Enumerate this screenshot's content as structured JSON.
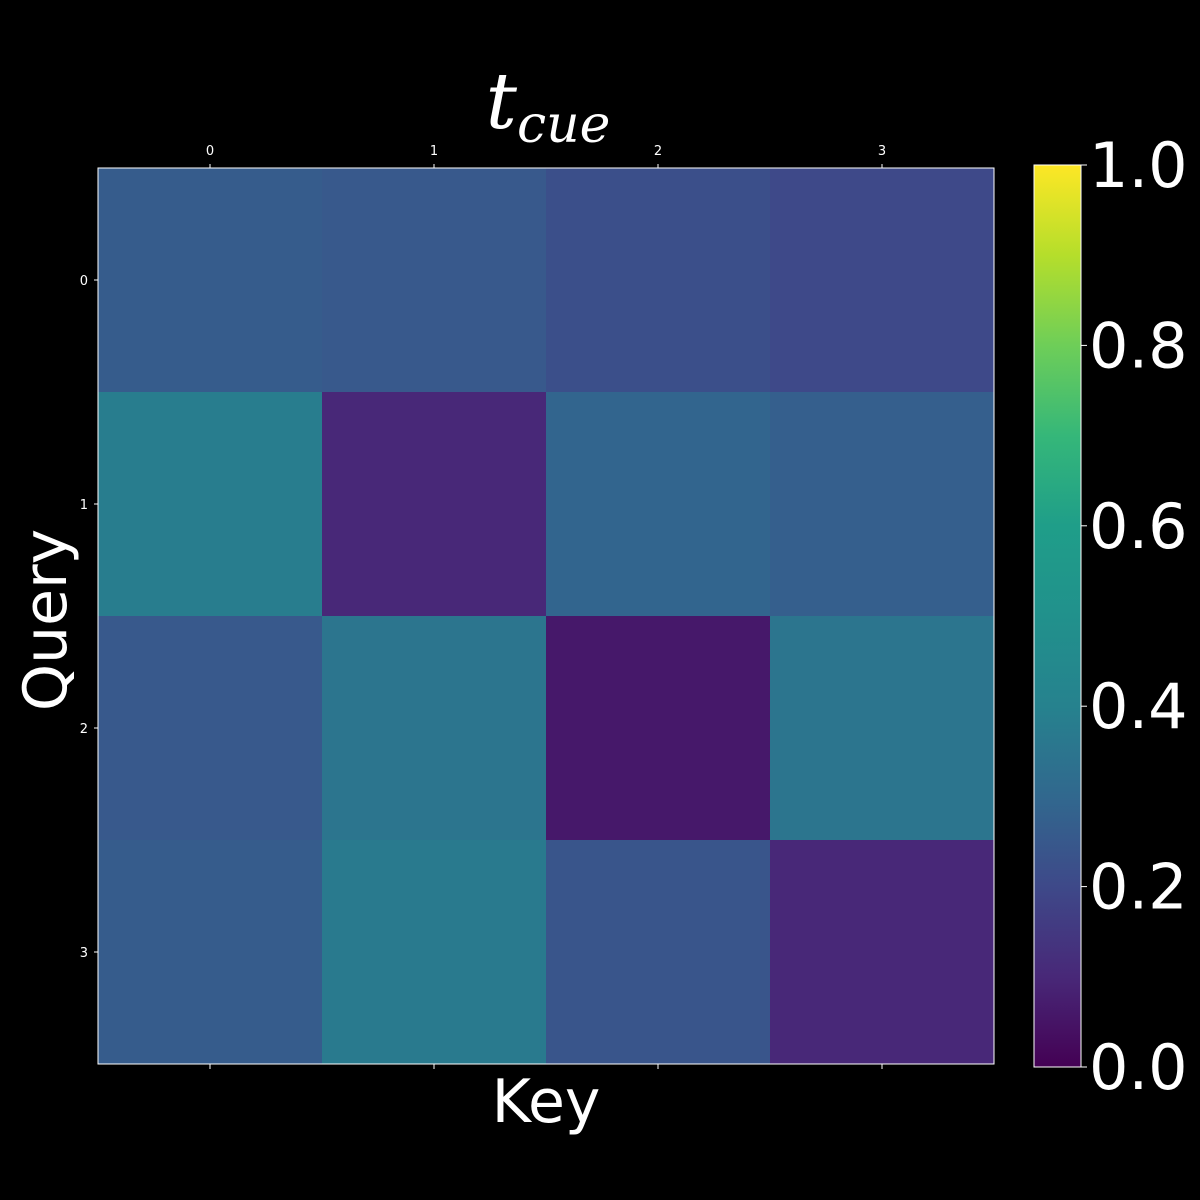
{
  "chart_data": {
    "type": "heatmap",
    "title_main": "t",
    "title_subscript": "cue",
    "xlabel": "Key",
    "ylabel": "Query",
    "x_ticks": [
      "0",
      "1",
      "2",
      "3"
    ],
    "y_ticks": [
      "0",
      "1",
      "2",
      "3"
    ],
    "colormap": "viridis",
    "vmin": 0.0,
    "vmax": 1.0,
    "colorbar_ticks": [
      "0.0",
      "0.2",
      "0.4",
      "0.6",
      "0.8",
      "1.0"
    ],
    "colorbar_tick_values": [
      0.0,
      0.2,
      0.4,
      0.6,
      0.8,
      1.0
    ],
    "matrix": [
      [
        0.26,
        0.25,
        0.22,
        0.2
      ],
      [
        0.38,
        0.1,
        0.29,
        0.27
      ],
      [
        0.25,
        0.35,
        0.06,
        0.35
      ],
      [
        0.26,
        0.37,
        0.24,
        0.1
      ]
    ]
  },
  "colors": {
    "background": "#000000",
    "foreground": "#ffffff"
  }
}
